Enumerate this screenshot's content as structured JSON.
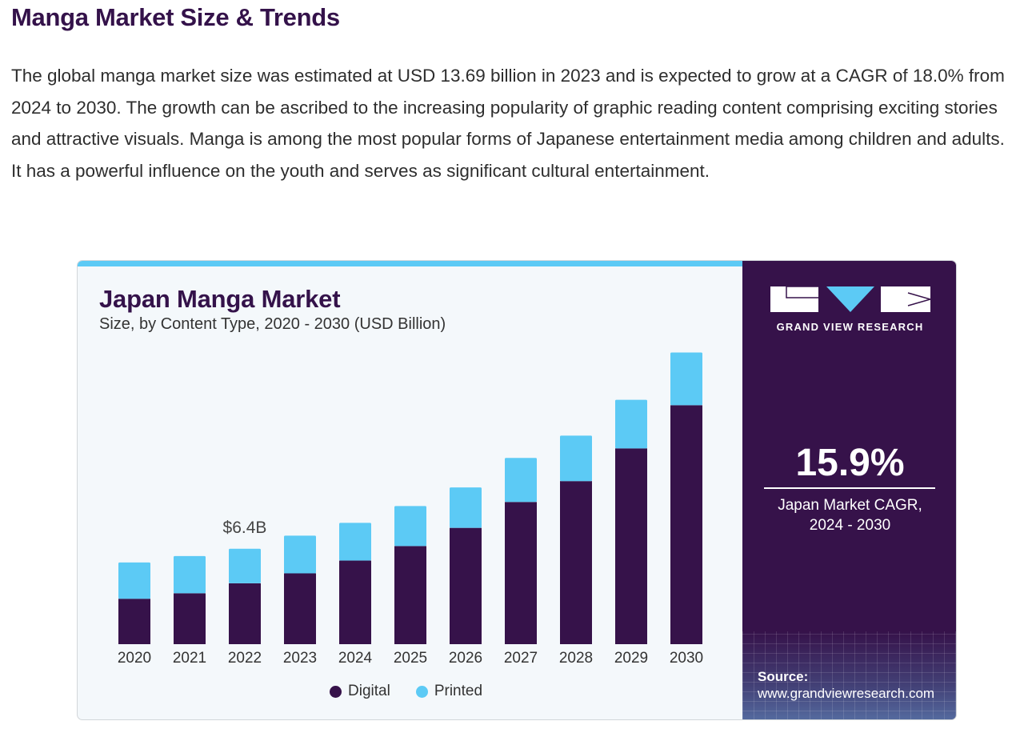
{
  "page": {
    "heading": "Manga Market Size & Trends",
    "intro": "The global manga market size was estimated at USD 13.69 billion in 2023 and is expected to grow at a CAGR of 18.0% from 2024 to 2030. The growth can be ascribed to the increasing popularity of graphic reading content comprising exciting stories and attractive visuals. Manga is among the most popular forms of Japanese entertainment media among children and adults. It has a powerful influence on the youth and serves as significant cultural entertainment."
  },
  "sidebar": {
    "logo_text": "GRAND VIEW RESEARCH",
    "cagr_value": "15.9%",
    "cagr_label_line1": "Japan Market CAGR,",
    "cagr_label_line2": "2024 - 2030",
    "source_label": "Source:",
    "source_url": "www.grandviewresearch.com"
  },
  "colors": {
    "digital": "#36124a",
    "printed": "#5ccaf5",
    "heading": "#34124a"
  },
  "chart_data": {
    "type": "bar",
    "stacked": true,
    "title": "Japan Manga Market",
    "subtitle": "Size, by Content Type, 2020 - 2030 (USD Billion)",
    "categories": [
      "2020",
      "2021",
      "2022",
      "2023",
      "2024",
      "2025",
      "2026",
      "2027",
      "2028",
      "2029",
      "2030"
    ],
    "series": [
      {
        "name": "Digital",
        "values": [
          1.0,
          1.12,
          1.34,
          1.56,
          1.84,
          2.16,
          2.56,
          3.13,
          3.59,
          4.31,
          5.26
        ]
      },
      {
        "name": "Printed",
        "values": [
          0.8,
          0.82,
          0.76,
          0.83,
          0.83,
          0.88,
          0.89,
          0.97,
          1.0,
          1.07,
          1.16
        ]
      }
    ],
    "annotations": [
      {
        "category": "2022",
        "text": "$6.4B"
      }
    ],
    "ylim": [
      0,
      6.5
    ],
    "grid": false,
    "legend": "bottom"
  }
}
